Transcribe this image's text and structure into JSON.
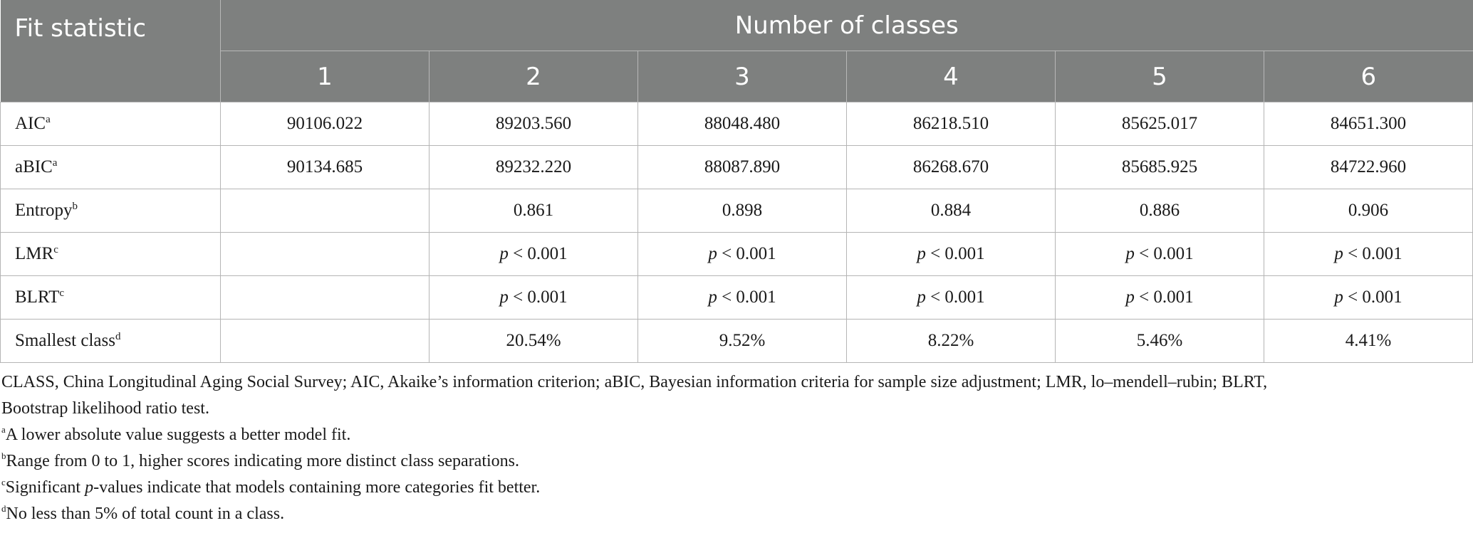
{
  "header": {
    "fit_statistic": "Fit statistic",
    "group_label": "Number of classes",
    "classes": [
      "1",
      "2",
      "3",
      "4",
      "5",
      "6"
    ]
  },
  "rows": [
    {
      "label": "AIC",
      "sup": "a",
      "values": [
        "90106.022",
        "89203.560",
        "88048.480",
        "86218.510",
        "85625.017",
        "84651.300"
      ]
    },
    {
      "label": "aBIC",
      "sup": "a",
      "values": [
        "90134.685",
        "89232.220",
        "88087.890",
        "86268.670",
        "85685.925",
        "84722.960"
      ]
    },
    {
      "label": "Entropy",
      "sup": "b",
      "values": [
        "",
        "0.861",
        "0.898",
        "0.884",
        "0.886",
        "0.906"
      ]
    },
    {
      "label": "LMR",
      "sup": "c",
      "values": [
        "",
        "< 0.001",
        "< 0.001",
        "< 0.001",
        "< 0.001",
        "< 0.001"
      ]
    },
    {
      "label": "BLRT",
      "sup": "c",
      "values": [
        "",
        "< 0.001",
        "< 0.001",
        "< 0.001",
        "< 0.001",
        "< 0.001"
      ]
    },
    {
      "label": "Smallest class",
      "sup": "d",
      "values": [
        "",
        "20.54%",
        "9.52%",
        "8.22%",
        "5.46%",
        "4.41%"
      ]
    }
  ],
  "p_symbol": "p",
  "notes": {
    "abbreviations_line1": "CLASS, China Longitudinal Aging Social Survey; AIC, Akaike’s information criterion; aBIC, Bayesian information criteria for sample size adjustment; LMR, lo–mendell–rubin; BLRT,",
    "abbreviations_line2": "Bootstrap likelihood ratio test.",
    "a_mark": "a",
    "a_text": "A lower absolute value suggests a better model fit.",
    "b_mark": "b",
    "b_text": "Range from 0 to 1, higher scores indicating more distinct class separations.",
    "c_mark": "c",
    "c_text_pre": "Significant ",
    "c_text_p": "p",
    "c_text_post": "-values indicate that models containing more categories fit better.",
    "d_mark": "d",
    "d_text": "No less than 5% of total count in a class."
  },
  "colors": {
    "header_bg": "#7e807f",
    "header_text": "#ffffff",
    "grid": "#b5b5b5",
    "body_text": "#1a1a1a"
  }
}
